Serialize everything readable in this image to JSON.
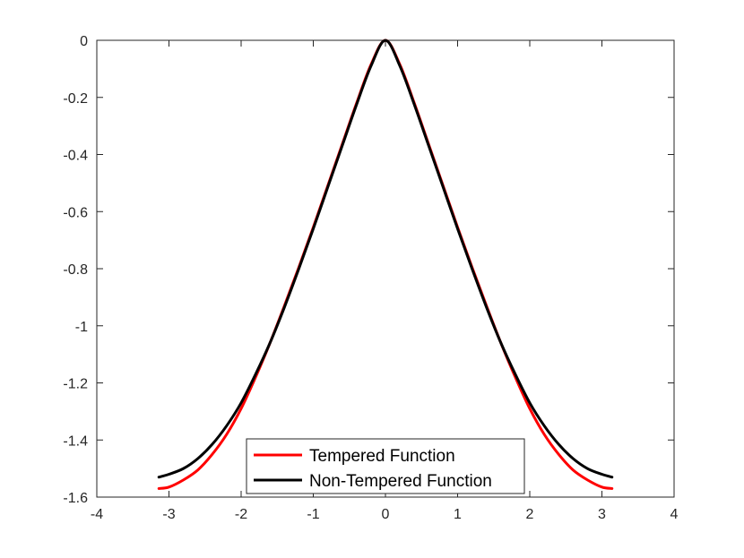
{
  "chart_data": {
    "type": "line",
    "title": "",
    "xlabel": "",
    "ylabel": "",
    "xlim": [
      -4,
      4
    ],
    "ylim": [
      -1.6,
      0
    ],
    "xticks": [
      -4,
      -3,
      -2,
      -1,
      0,
      1,
      2,
      3,
      4
    ],
    "xtick_labels": [
      "-4",
      "-3",
      "-2",
      "-1",
      "0",
      "1",
      "2",
      "3",
      "4"
    ],
    "yticks": [
      0,
      -0.2,
      -0.4,
      -0.6,
      -0.8,
      -1,
      -1.2,
      -1.4,
      -1.6
    ],
    "ytick_labels": [
      "0",
      "-0.2",
      "-0.4",
      "-0.6",
      "-0.8",
      "-1",
      "-1.2",
      "-1.4",
      "-1.6"
    ],
    "grid": false,
    "legend_position": "bottom-center",
    "series": [
      {
        "name": "Tempered Function",
        "color": "#ff0000",
        "x": [
          -3.14,
          -3.0,
          -2.8,
          -2.6,
          -2.4,
          -2.2,
          -2.0,
          -1.8,
          -1.6,
          -1.4,
          -1.2,
          -1.0,
          -0.8,
          -0.6,
          -0.4,
          -0.2,
          0.0,
          0.2,
          0.4,
          0.6,
          0.8,
          1.0,
          1.2,
          1.4,
          1.6,
          1.8,
          2.0,
          2.2,
          2.4,
          2.6,
          2.8,
          3.0,
          3.14
        ],
        "y": [
          -1.57,
          -1.565,
          -1.54,
          -1.505,
          -1.45,
          -1.38,
          -1.29,
          -1.18,
          -1.06,
          -0.93,
          -0.795,
          -0.655,
          -0.51,
          -0.365,
          -0.22,
          -0.085,
          0.0,
          -0.085,
          -0.22,
          -0.365,
          -0.51,
          -0.655,
          -0.795,
          -0.93,
          -1.06,
          -1.18,
          -1.29,
          -1.38,
          -1.45,
          -1.505,
          -1.54,
          -1.565,
          -1.57
        ]
      },
      {
        "name": "Non-Tempered Function",
        "color": "#000000",
        "x": [
          -3.14,
          -3.0,
          -2.8,
          -2.6,
          -2.4,
          -2.2,
          -2.0,
          -1.8,
          -1.6,
          -1.4,
          -1.2,
          -1.0,
          -0.8,
          -0.6,
          -0.4,
          -0.2,
          0.0,
          0.2,
          0.4,
          0.6,
          0.8,
          1.0,
          1.2,
          1.4,
          1.6,
          1.8,
          2.0,
          2.2,
          2.4,
          2.6,
          2.8,
          3.0,
          3.14
        ],
        "y": [
          -1.53,
          -1.52,
          -1.5,
          -1.465,
          -1.415,
          -1.35,
          -1.27,
          -1.17,
          -1.06,
          -0.935,
          -0.8,
          -0.66,
          -0.515,
          -0.37,
          -0.225,
          -0.09,
          0.0,
          -0.09,
          -0.225,
          -0.37,
          -0.515,
          -0.66,
          -0.8,
          -0.935,
          -1.06,
          -1.17,
          -1.27,
          -1.35,
          -1.415,
          -1.465,
          -1.5,
          -1.52,
          -1.53
        ]
      }
    ]
  }
}
